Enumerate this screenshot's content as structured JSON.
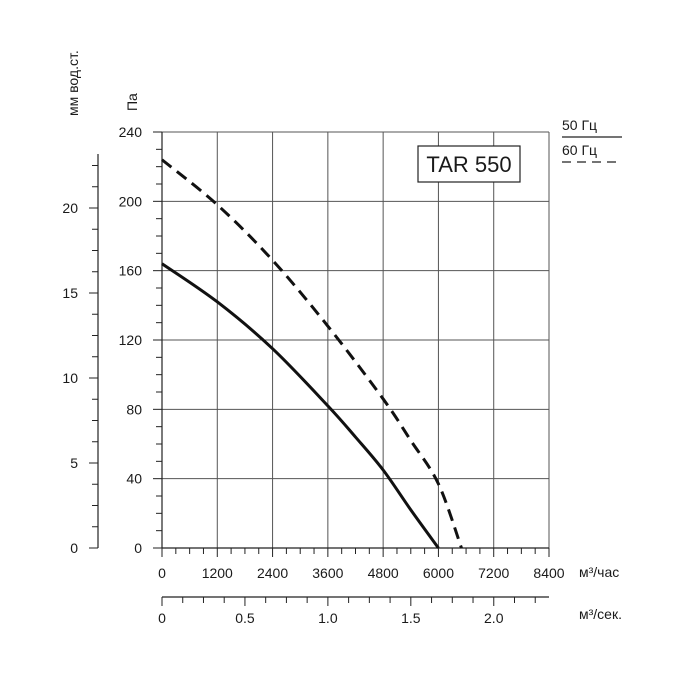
{
  "chart_data": {
    "type": "line",
    "model": "TAR 550",
    "x_unit_primary": "м³/час",
    "x_unit_secondary": "м³/сек.",
    "y_unit_primary": "Па",
    "y_unit_secondary": "мм вод.ст.",
    "xlim": [
      0,
      8400
    ],
    "ylim": [
      0,
      240
    ],
    "x_ticks": [
      0,
      1200,
      2400,
      3600,
      4800,
      6000,
      7200,
      8400
    ],
    "y_ticks": [
      0,
      40,
      80,
      120,
      160,
      200,
      240
    ],
    "x2_ticks": [
      {
        "value": 0,
        "label": "0"
      },
      {
        "value": 0.5,
        "label": "0.5"
      },
      {
        "value": 1.0,
        "label": "1.0"
      },
      {
        "value": 1.5,
        "label": "1.5"
      },
      {
        "value": 2.0,
        "label": "2.0"
      }
    ],
    "x2_max": 2.333,
    "y2_ticks": [
      {
        "value": 0,
        "label": "0"
      },
      {
        "value": 5,
        "label": "5"
      },
      {
        "value": 10,
        "label": "10"
      },
      {
        "value": 15,
        "label": "15"
      },
      {
        "value": 20,
        "label": "20"
      }
    ],
    "y2_max": 24.47,
    "grid": true,
    "legend": [
      {
        "label": "50 Гц",
        "style": "solid"
      },
      {
        "label": "60 Гц",
        "style": "dashed"
      }
    ],
    "series": [
      {
        "name": "50 Гц",
        "style": "solid",
        "x": [
          0,
          1200,
          2400,
          3600,
          4200,
          4800,
          5400,
          6000
        ],
        "y": [
          164,
          142,
          115,
          82,
          64,
          45,
          22,
          0
        ]
      },
      {
        "name": "60 Гц",
        "style": "dashed",
        "x": [
          0,
          1200,
          2400,
          3600,
          4800,
          5400,
          6000,
          6500
        ],
        "y": [
          224,
          198,
          166,
          128,
          86,
          62,
          37,
          0
        ]
      }
    ]
  }
}
